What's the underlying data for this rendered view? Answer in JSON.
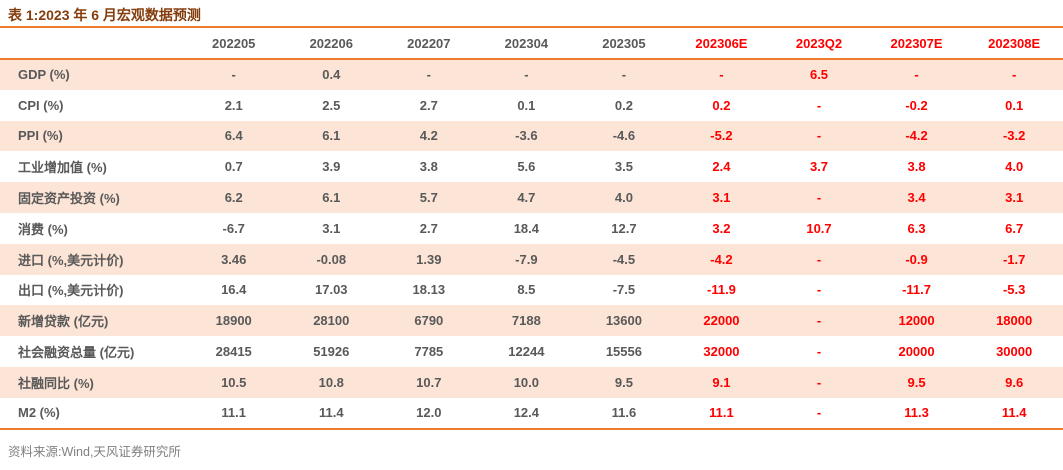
{
  "title": "表 1:2023 年 6 月宏观数据预测",
  "colors": {
    "accent": "#ED7D31",
    "band": "#FCE4D6",
    "title": "#843C0C",
    "text": "#595959",
    "red": "#FF0000",
    "muted": "#808080"
  },
  "table": {
    "columns": [
      "",
      "202205",
      "202206",
      "202207",
      "202304",
      "202305",
      "202306E",
      "2023Q2",
      "202307E",
      "202308E"
    ],
    "forecast_columns": [
      "202306E",
      "2023Q2",
      "202307E",
      "202308E"
    ],
    "rows": [
      {
        "label": "GDP (%)",
        "values": [
          "-",
          "0.4",
          "-",
          "-",
          "-",
          "-",
          "6.5",
          "-",
          "-"
        ]
      },
      {
        "label": "CPI (%)",
        "values": [
          "2.1",
          "2.5",
          "2.7",
          "0.1",
          "0.2",
          "0.2",
          "-",
          "-0.2",
          "0.1"
        ]
      },
      {
        "label": "PPI (%)",
        "values": [
          "6.4",
          "6.1",
          "4.2",
          "-3.6",
          "-4.6",
          "-5.2",
          "-",
          "-4.2",
          "-3.2"
        ]
      },
      {
        "label": "工业增加值 (%)",
        "values": [
          "0.7",
          "3.9",
          "3.8",
          "5.6",
          "3.5",
          "2.4",
          "3.7",
          "3.8",
          "4.0"
        ]
      },
      {
        "label": "固定资产投资 (%)",
        "values": [
          "6.2",
          "6.1",
          "5.7",
          "4.7",
          "4.0",
          "3.1",
          "-",
          "3.4",
          "3.1"
        ]
      },
      {
        "label": "消费 (%)",
        "values": [
          "-6.7",
          "3.1",
          "2.7",
          "18.4",
          "12.7",
          "3.2",
          "10.7",
          "6.3",
          "6.7"
        ]
      },
      {
        "label": "进口 (%,美元计价)",
        "values": [
          "3.46",
          "-0.08",
          "1.39",
          "-7.9",
          "-4.5",
          "-4.2",
          "-",
          "-0.9",
          "-1.7"
        ]
      },
      {
        "label": "出口 (%,美元计价)",
        "values": [
          "16.4",
          "17.03",
          "18.13",
          "8.5",
          "-7.5",
          "-11.9",
          "-",
          "-11.7",
          "-5.3"
        ]
      },
      {
        "label": "新增贷款 (亿元)",
        "values": [
          "18900",
          "28100",
          "6790",
          "7188",
          "13600",
          "22000",
          "-",
          "12000",
          "18000"
        ]
      },
      {
        "label": "社会融资总量 (亿元)",
        "values": [
          "28415",
          "51926",
          "7785",
          "12244",
          "15556",
          "32000",
          "-",
          "20000",
          "30000"
        ]
      },
      {
        "label": "社融同比 (%)",
        "values": [
          "10.5",
          "10.8",
          "10.7",
          "10.0",
          "9.5",
          "9.1",
          "-",
          "9.5",
          "9.6"
        ]
      },
      {
        "label": "M2 (%)",
        "values": [
          "11.1",
          "11.4",
          "12.0",
          "12.4",
          "11.6",
          "11.1",
          "-",
          "11.3",
          "11.4"
        ]
      }
    ]
  },
  "source": "资料来源:Wind,天风证券研究所"
}
